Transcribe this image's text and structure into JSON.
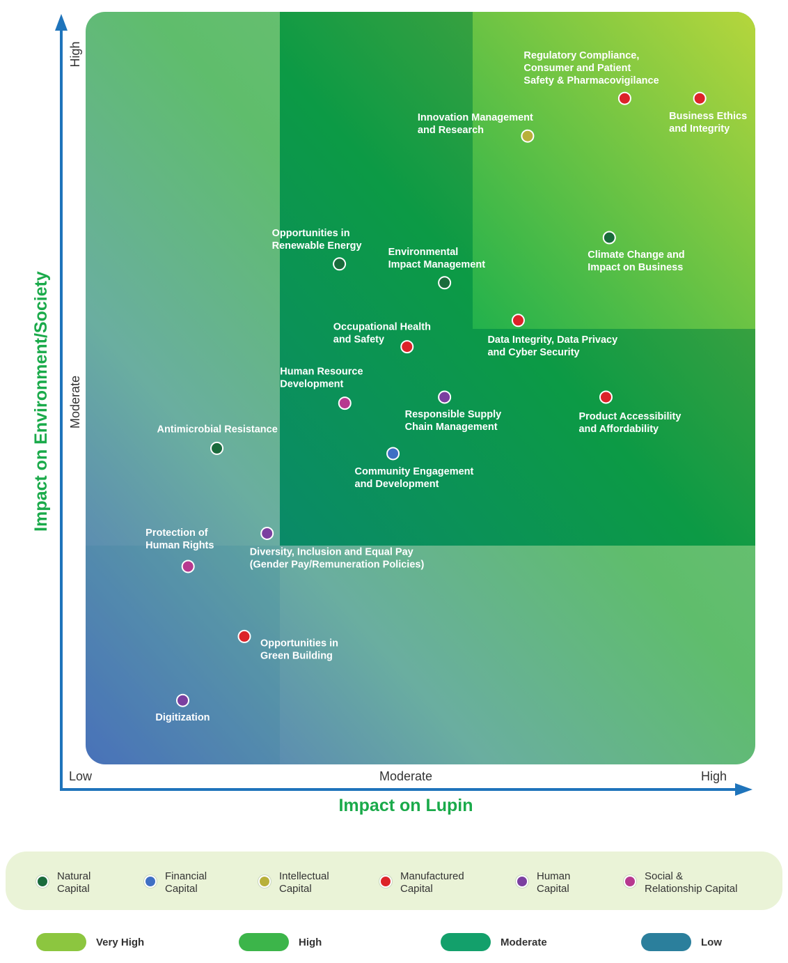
{
  "chart_data": {
    "type": "scatter",
    "title": "",
    "xlabel": "Impact on Lupin",
    "ylabel": "Impact on Environment/Society",
    "x_ticks": [
      "Low",
      "Moderate",
      "High"
    ],
    "y_ticks": [
      "High",
      "Moderate"
    ],
    "xlim": [
      0,
      100
    ],
    "ylim": [
      0,
      100
    ],
    "zones": [
      {
        "name": "Very High",
        "x": [
          58,
          100
        ],
        "y": [
          58,
          100
        ]
      },
      {
        "name": "High",
        "x": [
          29,
          100
        ],
        "y": [
          29,
          100
        ]
      },
      {
        "name": "Moderate",
        "x": [
          0,
          100
        ],
        "y": [
          0,
          100
        ]
      },
      {
        "name": "Low",
        "x": [
          0,
          29
        ],
        "y": [
          0,
          29
        ]
      }
    ],
    "points": [
      {
        "label": [
          "Regulatory Compliance,",
          "Consumer and Patient",
          "Safety & Pharmacovigilance"
        ],
        "capital": "Manufactured Capital",
        "x": 80.5,
        "y": 88.5
      },
      {
        "label": [
          "Business Ethics",
          "and Integrity"
        ],
        "capital": "Manufactured Capital",
        "x": 91.7,
        "y": 88.5
      },
      {
        "label": [
          "Innovation Management",
          "and Research"
        ],
        "capital": "Intellectual Capital",
        "x": 66.0,
        "y": 83.5
      },
      {
        "label": [
          "Climate Change and",
          "Impact on Business"
        ],
        "capital": "Natural Capital",
        "x": 78.2,
        "y": 70.0
      },
      {
        "label": [
          "Opportunities in",
          "Renewable Energy"
        ],
        "capital": "Natural Capital",
        "x": 37.9,
        "y": 66.5
      },
      {
        "label": [
          "Environmental",
          "Impact Management"
        ],
        "capital": "Natural Capital",
        "x": 53.6,
        "y": 64.0
      },
      {
        "label": [
          "Data Integrity, Data Privacy",
          "and Cyber Security"
        ],
        "capital": "Manufactured Capital",
        "x": 64.6,
        "y": 59.0
      },
      {
        "label": [
          "Occupational Health",
          "and Safety"
        ],
        "capital": "Manufactured Capital",
        "x": 48.0,
        "y": 55.5
      },
      {
        "label": [
          "Human Resource",
          "Development"
        ],
        "capital": "Social & Relationship Capital",
        "x": 38.7,
        "y": 48.0
      },
      {
        "label": [
          "Responsible Supply",
          "Chain Management"
        ],
        "capital": "Human Capital",
        "x": 53.6,
        "y": 48.8
      },
      {
        "label": [
          "Product Accessibility",
          "and Affordability"
        ],
        "capital": "Manufactured Capital",
        "x": 77.7,
        "y": 48.8
      },
      {
        "label": [
          "Antimicrobial Resistance"
        ],
        "capital": "Natural Capital",
        "x": 19.6,
        "y": 42.0
      },
      {
        "label": [
          "Community Engagement",
          "and Development"
        ],
        "capital": "Financial Capital",
        "x": 45.9,
        "y": 41.3
      },
      {
        "label": [
          "Diversity, Inclusion and Equal Pay",
          "(Gender Pay/Remuneration Policies)"
        ],
        "capital": "Human Capital",
        "x": 27.1,
        "y": 30.7
      },
      {
        "label": [
          "Protection of",
          "Human Rights"
        ],
        "capital": "Social & Relationship Capital",
        "x": 15.3,
        "y": 26.3
      },
      {
        "label": [
          "Opportunities in",
          "Green Building"
        ],
        "capital": "Manufactured Capital",
        "x": 23.7,
        "y": 17.0
      },
      {
        "label": [
          "Digitization"
        ],
        "capital": "Human Capital",
        "x": 14.5,
        "y": 8.5
      }
    ]
  },
  "capitals": [
    {
      "name": "Natural Capital",
      "lines": [
        "Natural",
        "Capital"
      ],
      "color": "#1a6b3c"
    },
    {
      "name": "Financial Capital",
      "lines": [
        "Financial",
        "Capital"
      ],
      "color": "#3f6fc4"
    },
    {
      "name": "Intellectual Capital",
      "lines": [
        "Intellectual",
        "Capital"
      ],
      "color": "#b8b03a"
    },
    {
      "name": "Manufactured Capital",
      "lines": [
        "Manufactured",
        "Capital"
      ],
      "color": "#dc2329"
    },
    {
      "name": "Human Capital",
      "lines": [
        "Human",
        "Capital"
      ],
      "color": "#7b3fa0"
    },
    {
      "name": "Social & Relationship Capital",
      "lines": [
        "Social &",
        "Relationship Capital"
      ],
      "color": "#b7388f"
    }
  ],
  "impact_legend": [
    {
      "label": "Very High",
      "color": "#8cc63f"
    },
    {
      "label": "High",
      "color": "#3cb54a"
    },
    {
      "label": "Moderate",
      "color": "#13a06b"
    },
    {
      "label": "Low",
      "color": "#2b7f9c"
    }
  ]
}
